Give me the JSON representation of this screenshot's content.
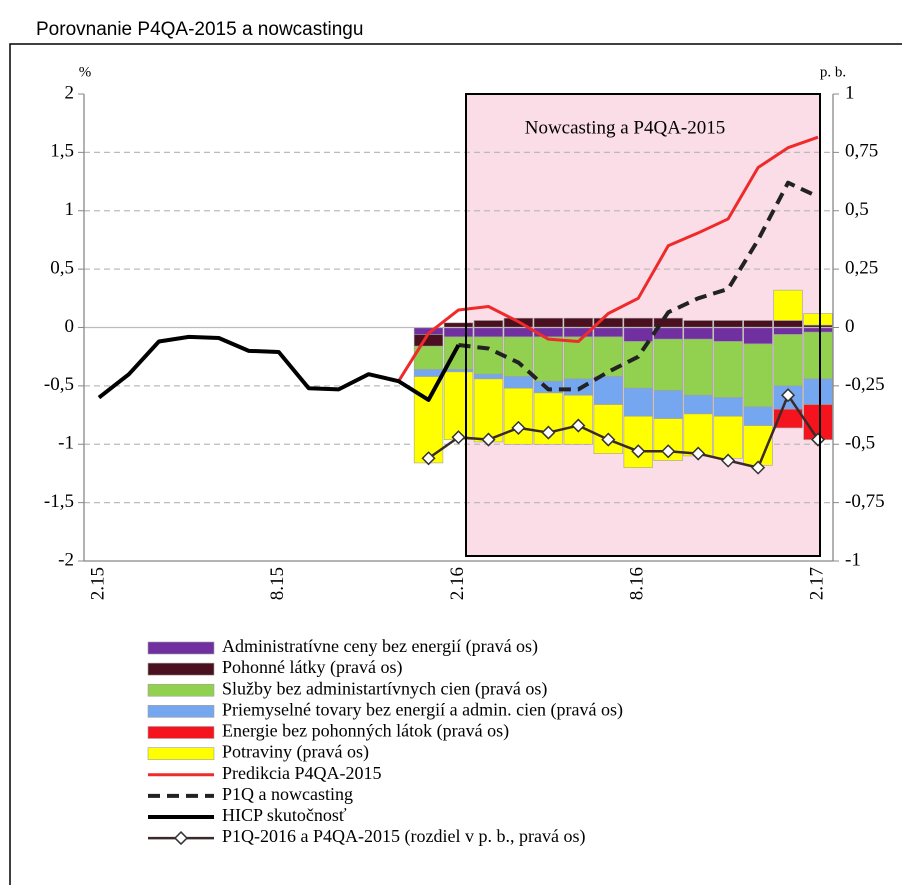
{
  "chart_data": {
    "type": "combo",
    "title": "Porovnanie P4QA-2015 a nowcastingu",
    "y_unit": "%",
    "y2_unit": "p. b.",
    "annotation": "Nowcasting a P4QA-2015",
    "categories": [
      "2.15",
      null,
      null,
      null,
      null,
      null,
      "8.15",
      null,
      null,
      null,
      null,
      null,
      "2.16",
      null,
      null,
      null,
      null,
      null,
      "8.16",
      null,
      null,
      null,
      null,
      null,
      "2.17"
    ],
    "ylim": [
      -2,
      2
    ],
    "yticks": [
      {
        "value": -2,
        "label": "-2"
      },
      {
        "value": -1.5,
        "label": "-1,5"
      },
      {
        "value": -1,
        "label": "-1"
      },
      {
        "value": -0.5,
        "label": "-0,5"
      },
      0,
      {
        "value": 0.5,
        "label": "0,5"
      },
      1,
      {
        "value": 1.5,
        "label": "1,5"
      },
      2
    ],
    "y2lim": [
      -1,
      1
    ],
    "y2ticks": [
      {
        "value": -1,
        "label": "-1"
      },
      {
        "value": -0.75,
        "label": "-0,75"
      },
      {
        "value": -0.5,
        "label": "-0,5"
      },
      {
        "value": -0.25,
        "label": "-0,25"
      },
      0,
      {
        "value": 0.25,
        "label": "0,25"
      },
      {
        "value": 0.5,
        "label": "0,5"
      },
      {
        "value": 0.75,
        "label": "0,75"
      },
      1
    ],
    "grid": true,
    "series": [
      {
        "name": "Administratívne ceny bez energií (pravá os)",
        "type": "bar",
        "axis": "y2",
        "color": "#7030a0",
        "values": [
          null,
          null,
          null,
          null,
          null,
          null,
          null,
          null,
          null,
          null,
          null,
          -0.03,
          -0.04,
          -0.04,
          -0.04,
          -0.04,
          -0.04,
          -0.04,
          -0.06,
          -0.05,
          -0.05,
          -0.06,
          -0.07,
          -0.03,
          -0.02
        ]
      },
      {
        "name": "Pohonné látky (pravá os)",
        "type": "bar",
        "axis": "y2",
        "color": "#4a1020",
        "values": [
          null,
          null,
          null,
          null,
          null,
          null,
          null,
          null,
          null,
          null,
          null,
          -0.05,
          0.02,
          0.03,
          0.04,
          0.04,
          0.04,
          0.04,
          0.04,
          0.04,
          0.03,
          0.03,
          0.03,
          0.03,
          0.01
        ]
      },
      {
        "name": "Služby bez administartívnych cien (pravá os)",
        "type": "bar",
        "axis": "y2",
        "color": "#92d050",
        "values": [
          null,
          null,
          null,
          null,
          null,
          null,
          null,
          null,
          null,
          null,
          null,
          -0.1,
          -0.14,
          -0.16,
          -0.17,
          -0.19,
          -0.18,
          -0.17,
          -0.2,
          -0.22,
          -0.24,
          -0.24,
          -0.27,
          -0.22,
          -0.2
        ]
      },
      {
        "name": "Priemyselné tovary bez energií a admin. cien (pravá os)",
        "type": "bar",
        "axis": "y2",
        "color": "#74a7ef",
        "values": [
          null,
          null,
          null,
          null,
          null,
          null,
          null,
          null,
          null,
          null,
          null,
          -0.03,
          -0.01,
          -0.02,
          -0.05,
          -0.05,
          -0.07,
          -0.12,
          -0.12,
          -0.12,
          -0.08,
          -0.08,
          -0.08,
          -0.1,
          -0.11
        ]
      },
      {
        "name": "Energie bez pohonných látok (pravá os)",
        "type": "bar",
        "axis": "y2",
        "color": "#f5141e",
        "values": [
          null,
          null,
          null,
          null,
          null,
          null,
          null,
          null,
          null,
          null,
          null,
          0,
          0,
          0,
          0,
          0,
          0,
          0,
          0,
          0,
          0,
          0,
          0,
          -0.08,
          -0.15
        ]
      },
      {
        "name": "Potraviny (pravá os)",
        "type": "bar",
        "axis": "y2",
        "color": "#ffff00",
        "values": [
          null,
          null,
          null,
          null,
          null,
          null,
          null,
          null,
          null,
          null,
          null,
          -0.37,
          -0.29,
          -0.27,
          -0.24,
          -0.22,
          -0.21,
          -0.21,
          -0.22,
          -0.18,
          -0.18,
          -0.18,
          -0.17,
          0.13,
          0.05
        ]
      },
      {
        "name": "Predikcia P4QA-2015",
        "type": "line",
        "color": "#ee2a2a",
        "width": 3,
        "values": [
          null,
          null,
          null,
          null,
          null,
          null,
          null,
          null,
          null,
          null,
          -0.46,
          -0.05,
          0.15,
          0.18,
          0.05,
          -0.1,
          -0.12,
          0.12,
          0.25,
          0.7,
          0.81,
          0.93,
          1.37,
          1.54,
          1.63
        ]
      },
      {
        "name": "P1Q a nowcasting",
        "type": "line",
        "color": "#222222",
        "width": 4,
        "dashed": true,
        "values": [
          null,
          null,
          null,
          null,
          null,
          null,
          null,
          null,
          null,
          null,
          null,
          null,
          -0.15,
          -0.18,
          -0.3,
          -0.53,
          -0.53,
          -0.38,
          -0.25,
          0.13,
          0.25,
          0.33,
          0.75,
          1.24,
          1.12
        ]
      },
      {
        "name": "HICP skutočnosť",
        "type": "line",
        "color": "#000000",
        "width": 4,
        "values": [
          -0.6,
          -0.4,
          -0.12,
          -0.08,
          -0.09,
          -0.2,
          -0.21,
          -0.52,
          -0.53,
          -0.4,
          -0.46,
          -0.62,
          -0.15,
          null,
          null,
          null,
          null,
          null,
          null,
          null,
          null,
          null,
          null,
          null,
          null
        ]
      },
      {
        "name": "P1Q-2016 a P4QA-2015 (rozdiel v p. b., pravá os)",
        "type": "line",
        "axis": "y2",
        "color": "#3a2a2a",
        "width": 2.5,
        "marker": "diamond",
        "values": [
          null,
          null,
          null,
          null,
          null,
          null,
          null,
          null,
          null,
          null,
          null,
          -0.56,
          -0.47,
          -0.48,
          -0.43,
          -0.45,
          -0.42,
          -0.48,
          -0.53,
          -0.53,
          -0.54,
          -0.57,
          -0.6,
          -0.29,
          -0.48
        ]
      }
    ]
  }
}
